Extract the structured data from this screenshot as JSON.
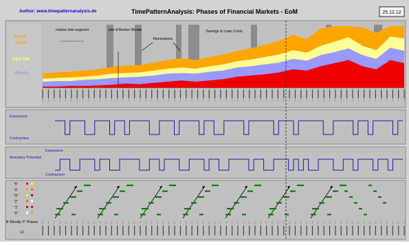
{
  "header": {
    "author": "Author: www.timepatternanalysis.de",
    "title": "TimePatternAnalysis: Phases of Financial Markets - EoM",
    "date": "25.12.12"
  },
  "colors": {
    "background": "#d3d3d3",
    "panel": "#c0c0c0",
    "author_text": "#0000cc",
    "stock_cash_band": "#ffa500",
    "sp500_band": "#ffff99",
    "bond_band": "#9999ff",
    "cash_band": "#ee0000",
    "recession_shade": "#8c8c8c",
    "phase_line": "#1a1aa6",
    "pattern_green": "#008000",
    "pattern_arrow": "#000000",
    "current_marker": "#333333"
  },
  "chart_data": [
    {
      "type": "area",
      "panel": "asset-allocation",
      "series": [
        {
          "name": "Stock Cash",
          "color": "#ffa500"
        },
        {
          "name": "S&P 500",
          "color": "#ffff99"
        },
        {
          "name": "Bonds",
          "color": "#9999ff"
        },
        {
          "name": ""
        }
      ],
      "series_labels": [
        "Stock",
        "Cash",
        "S&P 500",
        "Bonds"
      ],
      "annotations": [
        "relative inter-segment",
        "end of Bretton Woods",
        "Recessions",
        "Savings & Loan Crisis"
      ],
      "x_tick_count": 64,
      "stack_profile": {
        "red": [
          0.02,
          0.02,
          0.03,
          0.03,
          0.04,
          0.05,
          0.07,
          0.06,
          0.08,
          0.1,
          0.12,
          0.1,
          0.12,
          0.14,
          0.18,
          0.2,
          0.22,
          0.25,
          0.3,
          0.28,
          0.35,
          0.4,
          0.45,
          0.35,
          0.3,
          0.45,
          0.4
        ],
        "blue": [
          0.08,
          0.09,
          0.08,
          0.1,
          0.1,
          0.11,
          0.1,
          0.12,
          0.12,
          0.13,
          0.12,
          0.13,
          0.14,
          0.14,
          0.15,
          0.15,
          0.16,
          0.16,
          0.17,
          0.16,
          0.18,
          0.18,
          0.19,
          0.18,
          0.17,
          0.2,
          0.2
        ],
        "yellow": [
          0.05,
          0.05,
          0.06,
          0.05,
          0.06,
          0.07,
          0.07,
          0.07,
          0.08,
          0.08,
          0.09,
          0.08,
          0.09,
          0.1,
          0.1,
          0.11,
          0.12,
          0.13,
          0.14,
          0.13,
          0.15,
          0.17,
          0.18,
          0.15,
          0.14,
          0.18,
          0.2
        ],
        "orange": [
          0.08,
          0.09,
          0.09,
          0.1,
          0.1,
          0.11,
          0.12,
          0.12,
          0.13,
          0.14,
          0.15,
          0.14,
          0.15,
          0.16,
          0.17,
          0.18,
          0.2,
          0.22,
          0.25,
          0.22,
          0.28,
          0.35,
          0.45,
          0.3,
          0.28,
          0.4,
          0.95
        ]
      }
    },
    {
      "type": "line",
      "panel": "economic-cycle",
      "labels": {
        "top": "Expansion",
        "bottom": "Contraction"
      },
      "states": [
        1,
        1,
        0,
        1,
        1,
        1,
        0,
        0,
        1,
        1,
        1,
        0,
        1,
        1,
        0,
        1,
        1,
        1,
        1,
        0,
        0,
        1,
        1,
        1,
        0,
        1,
        1,
        1,
        1,
        0,
        1,
        1,
        0,
        0,
        1,
        1,
        1,
        1,
        0,
        1,
        1,
        1,
        1,
        1,
        0,
        1,
        1,
        1,
        0,
        1,
        1,
        1,
        1,
        1,
        0,
        0,
        1,
        1,
        1,
        1,
        0,
        1,
        1,
        0,
        1,
        1,
        1,
        1,
        0,
        1
      ]
    },
    {
      "type": "line",
      "panel": "monetary-policy",
      "labels": {
        "left": "Monetary Potential",
        "top": "Expansion",
        "bottom": "Contraction"
      },
      "states": [
        0,
        1,
        1,
        0,
        0,
        1,
        1,
        1,
        0,
        1,
        1,
        0,
        0,
        1,
        1,
        1,
        1,
        0,
        0,
        1,
        1,
        0,
        1,
        1,
        1,
        0,
        0,
        1,
        1,
        1,
        0,
        1,
        1,
        0,
        0,
        1,
        1,
        1,
        1,
        0,
        1,
        1,
        0,
        0,
        1,
        1,
        1,
        0,
        1,
        0,
        1,
        0,
        0,
        1,
        1,
        1,
        0,
        0,
        1,
        1,
        0,
        1,
        1,
        1,
        0,
        1,
        1,
        0,
        1,
        1
      ]
    },
    {
      "type": "scatter",
      "panel": "phase-pattern",
      "left_label": "IF Moralty 'F' Phases",
      "row_labels": [
        "\"5\"",
        "\"4\"",
        "\"3\"",
        "\"2\"",
        "\"1\"",
        "\"0\""
      ],
      "phase_count": "12",
      "cycles": 7
    }
  ]
}
